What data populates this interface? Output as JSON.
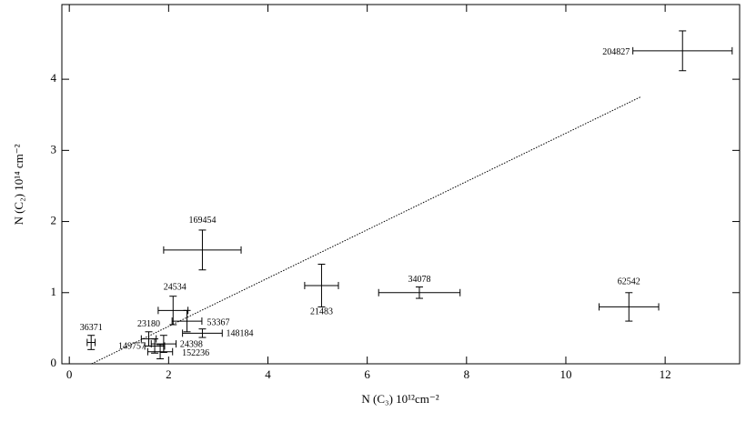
{
  "chart_data": {
    "type": "scatter",
    "xlabel": "N (C₃) 10¹²cm⁻²",
    "ylabel": "N (C₂) 10¹⁴ cm⁻²",
    "xlim": [
      -0.15,
      13.5
    ],
    "ylim": [
      0,
      5.05
    ],
    "xticks": [
      0,
      2,
      4,
      6,
      8,
      10,
      12
    ],
    "yticks": [
      0,
      1,
      2,
      3,
      4
    ],
    "color": "#000000",
    "series": [
      {
        "labels": [
          "204827",
          "169454",
          "21483",
          "34078",
          "62542",
          "24534",
          "53367",
          "148184",
          "36371",
          "23180",
          "149757",
          "24398",
          "152236"
        ],
        "x": [
          12.35,
          2.68,
          5.08,
          7.05,
          11.27,
          2.09,
          2.37,
          2.68,
          0.44,
          1.6,
          1.72,
          1.9,
          1.83
        ],
        "xerr": [
          1.0,
          0.78,
          0.34,
          0.82,
          0.6,
          0.3,
          0.3,
          0.4,
          0.08,
          0.15,
          0.2,
          0.25,
          0.25
        ],
        "values": [
          4.4,
          1.6,
          1.1,
          1.0,
          0.8,
          0.75,
          0.6,
          0.43,
          0.3,
          0.35,
          0.25,
          0.28,
          0.17
        ],
        "yerr": [
          0.28,
          0.28,
          0.3,
          0.08,
          0.2,
          0.2,
          0.15,
          0.06,
          0.1,
          0.1,
          0.1,
          0.12,
          0.1
        ]
      }
    ],
    "fit": {
      "x": [
        0.45,
        11.5
      ],
      "y": [
        0,
        3.75
      ]
    }
  }
}
